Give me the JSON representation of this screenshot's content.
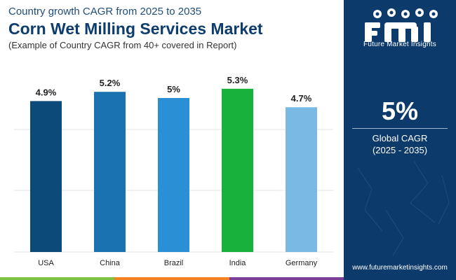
{
  "header": {
    "subtitle": "Country growth CAGR from 2025 to 2035",
    "title": "Corn Wet Milling Services Market",
    "note": "(Example of Country CAGR from 40+ covered in Report)"
  },
  "chart_data": {
    "type": "bar",
    "categories": [
      "USA",
      "China",
      "Brazil",
      "India",
      "Germany"
    ],
    "values": [
      4.9,
      5.2,
      5.0,
      5.3,
      4.7
    ],
    "data_labels": [
      "4.9%",
      "5.2%",
      "5%",
      "5.3%",
      "4.7%"
    ],
    "colors": [
      "#0b4a79",
      "#1a72b0",
      "#2a8fd4",
      "#17b23c",
      "#79b9e3"
    ],
    "ylim": [
      0,
      5.5
    ],
    "grid": true,
    "title": "",
    "xlabel": "",
    "ylabel": ""
  },
  "sidebar": {
    "logo_text": "Future Market Insights",
    "cagr_value": "5%",
    "cagr_label": "Global CAGR",
    "cagr_range": "(2025 - 2035)",
    "website": "www.futuremarketinsights.com"
  },
  "colors": {
    "sidebar_bg": "#0c3a6b",
    "bottom_bar": [
      "#7dc242",
      "#f58220",
      "#7b3f98"
    ]
  }
}
